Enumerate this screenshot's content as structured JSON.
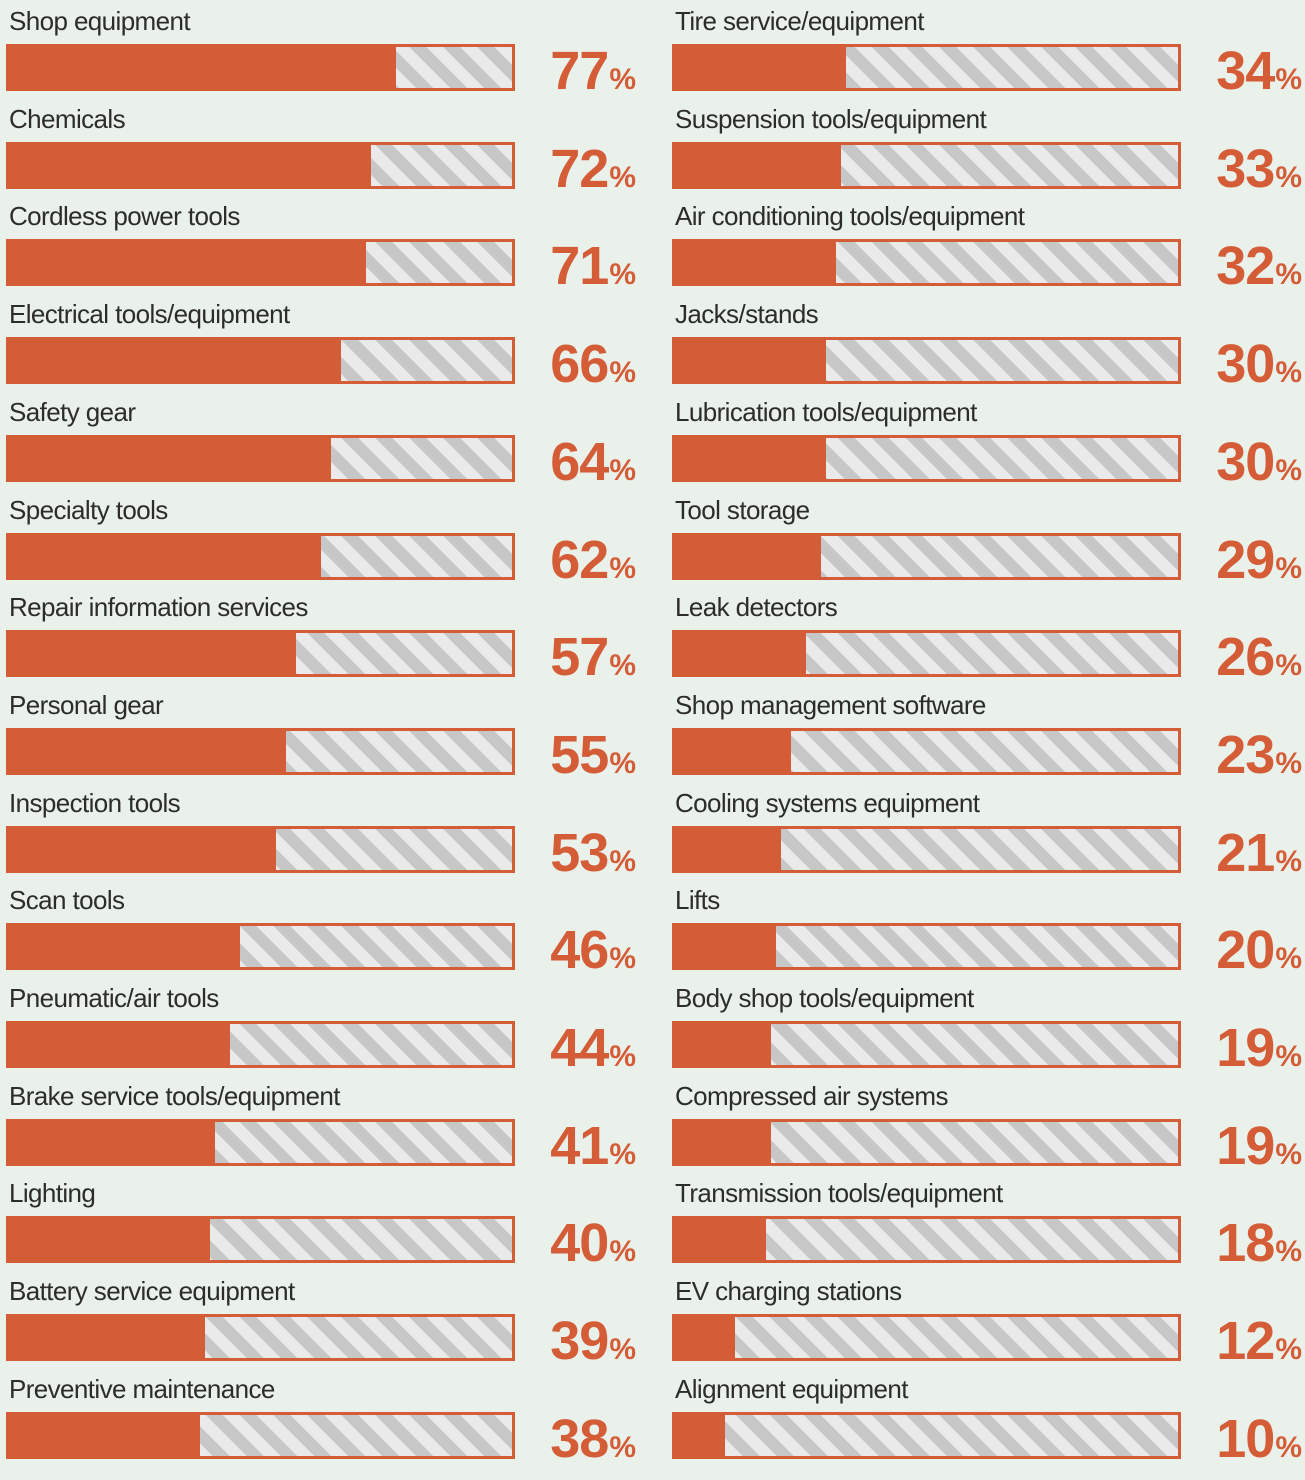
{
  "chart_data": {
    "type": "bar",
    "percent_sign": "%",
    "colors": {
      "fill": "#d45c37",
      "stripe": "#c7c7c7",
      "stripe_bg": "#eaeaea",
      "background": "#e9f1ea"
    },
    "columns": [
      {
        "categories": [
          "Shop equipment",
          "Chemicals",
          "Cordless power tools",
          "Electrical tools/equipment",
          "Safety gear",
          "Specialty tools",
          "Repair information services",
          "Personal gear",
          "Inspection tools",
          "Scan tools",
          "Pneumatic/air tools",
          "Brake service tools/equipment",
          "Lighting",
          "Battery service equipment",
          "Preventive maintenance"
        ],
        "values": [
          77,
          72,
          71,
          66,
          64,
          62,
          57,
          55,
          53,
          46,
          44,
          41,
          40,
          39,
          38
        ]
      },
      {
        "categories": [
          "Tire service/equipment",
          "Suspension tools/equipment",
          "Air conditioning tools/equipment",
          "Jacks/stands",
          "Lubrication tools/equipment",
          "Tool storage",
          "Leak detectors",
          "Shop management software",
          "Cooling systems equipment",
          "Lifts",
          "Body shop tools/equipment",
          "Compressed air systems",
          "Transmission tools/equipment",
          "EV charging stations",
          "Alignment equipment"
        ],
        "values": [
          34,
          33,
          32,
          30,
          30,
          29,
          26,
          23,
          21,
          20,
          19,
          19,
          18,
          12,
          10
        ]
      }
    ]
  }
}
